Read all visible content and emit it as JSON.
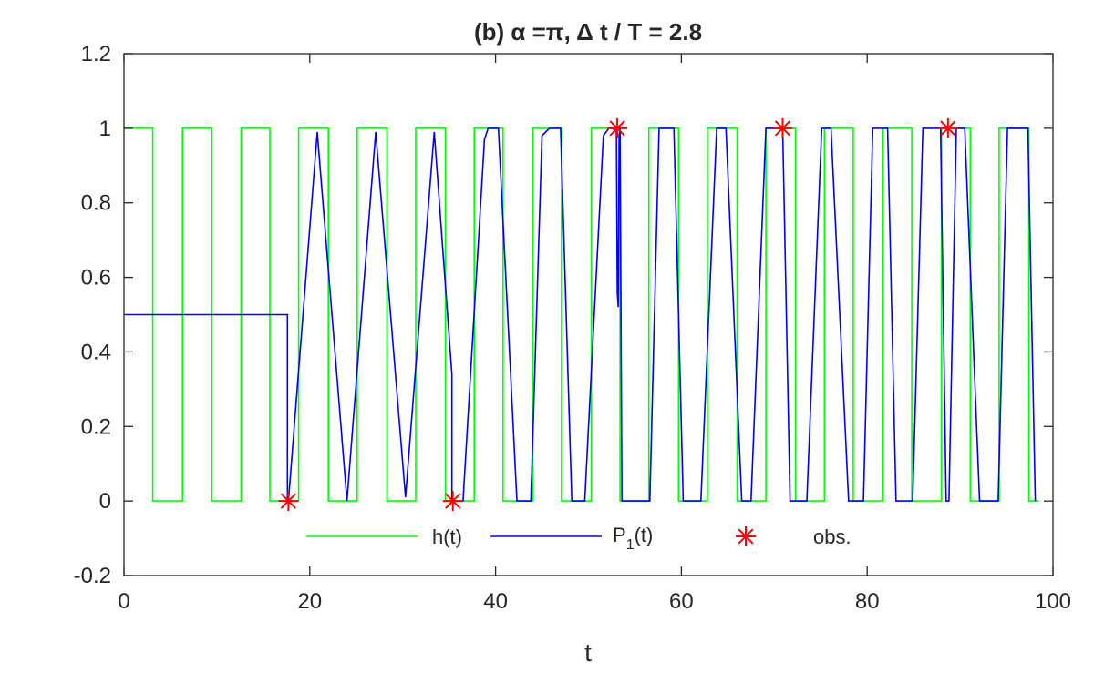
{
  "chart_data": {
    "type": "line",
    "title": "(b) α =π, Δ t / T = 2.8",
    "xlabel": "t",
    "ylabel": "",
    "xlim": [
      0,
      100
    ],
    "ylim": [
      -0.2,
      1.2
    ],
    "xticks": [
      0,
      20,
      40,
      60,
      80,
      100
    ],
    "xtick_labels": [
      "0",
      "20",
      "40",
      "60",
      "80",
      "100"
    ],
    "yticks": [
      -0.2,
      0,
      0.2,
      0.4,
      0.6,
      0.8,
      1,
      1.2
    ],
    "ytick_labels": [
      "-0.2",
      "0",
      "0.2",
      "0.4",
      "0.6",
      "0.8",
      "1",
      "1.2"
    ],
    "grid": false,
    "box": true,
    "legend_position": "bottom-center, horizontal",
    "series": [
      {
        "name": "h(t)",
        "color": "#00ff00",
        "style": "line",
        "x": [
          0,
          3.1,
          3.1,
          6.3,
          6.3,
          9.4,
          9.4,
          12.6,
          12.6,
          15.7,
          15.7,
          18.8,
          18.8,
          22,
          22,
          25.1,
          25.1,
          28.3,
          28.3,
          31.4,
          31.4,
          34.6,
          34.6,
          37.7,
          37.7,
          40.8,
          40.8,
          44,
          44,
          47.1,
          47.1,
          50.3,
          50.3,
          53.4,
          53.4,
          56.5,
          56.5,
          59.7,
          59.7,
          62.8,
          62.8,
          66,
          66,
          69.1,
          69.1,
          72.3,
          72.3,
          75.4,
          75.4,
          78.5,
          78.5,
          81.7,
          81.7,
          84.8,
          84.8,
          88,
          88,
          91.1,
          91.1,
          94.2,
          94.2,
          97.4,
          97.4,
          98.5
        ],
        "y": [
          1,
          1,
          0,
          0,
          1,
          1,
          0,
          0,
          1,
          1,
          0,
          0,
          1,
          1,
          0,
          0,
          1,
          1,
          0,
          0,
          1,
          1,
          0,
          0,
          1,
          1,
          0,
          0,
          1,
          1,
          0,
          0,
          1,
          1,
          0,
          0,
          1,
          1,
          0,
          0,
          1,
          1,
          0,
          0,
          1,
          1,
          0,
          0,
          1,
          1,
          0,
          0,
          1,
          1,
          0,
          0,
          1,
          1,
          0,
          0,
          1,
          1,
          0,
          0
        ]
      },
      {
        "name": "P_1(t)",
        "color": "#0000ff",
        "style": "line",
        "x": [
          0,
          17.6,
          17.6,
          17.7,
          20.8,
          24,
          27.1,
          30.3,
          33.4,
          35.3,
          35.3,
          35.4,
          36.5,
          38.8,
          39.2,
          40.3,
          42.3,
          43,
          43.8,
          45,
          45.8,
          47,
          48.2,
          49.1,
          49.6,
          51.6,
          52.2,
          52.6,
          53.0,
          53.1,
          53.2,
          53.3,
          53.4,
          53.6,
          55.2,
          56.6,
          57.6,
          59.2,
          60.2,
          62.1,
          63.8,
          64.8,
          66.5,
          67.5,
          69.1,
          70.3,
          70.7,
          70.9,
          71.7,
          72.6,
          73.5,
          75.1,
          76.1,
          78.0,
          79.6,
          80.6,
          82.2,
          83.1,
          84.9,
          86.0,
          87.9,
          88.5,
          88.8,
          89.6,
          90.5,
          92.1,
          94.1,
          95.1,
          97.3,
          98.1
        ],
        "y": [
          0.5,
          0.5,
          0,
          0,
          0.99,
          0,
          0.99,
          0.01,
          0.99,
          0.34,
          0,
          0,
          0,
          0.97,
          1,
          1,
          0,
          0,
          0,
          0.98,
          1,
          1,
          0,
          0,
          0,
          0.98,
          1,
          1,
          0.99,
          0.56,
          0.52,
          0.98,
          1,
          0,
          0,
          0,
          1,
          1,
          0,
          0,
          1,
          1,
          0,
          0,
          1,
          1,
          1,
          1,
          0,
          0,
          0,
          1,
          1,
          0,
          0,
          1,
          1,
          0,
          0,
          1,
          1,
          0,
          0,
          1,
          1,
          0,
          0,
          1,
          1,
          0
        ]
      },
      {
        "name": "obs.",
        "color": "#ff0000",
        "style": "marker-asterisk",
        "x": [
          17.7,
          35.4,
          53.1,
          70.9,
          88.7
        ],
        "y": [
          0,
          0,
          1,
          1,
          1
        ]
      }
    ],
    "legend": [
      {
        "label": "h(t)",
        "series": 0
      },
      {
        "label_main": "P",
        "label_sub": "1",
        "label_tail": "(t)",
        "series": 1
      },
      {
        "label": "obs.",
        "series": 2
      }
    ]
  }
}
